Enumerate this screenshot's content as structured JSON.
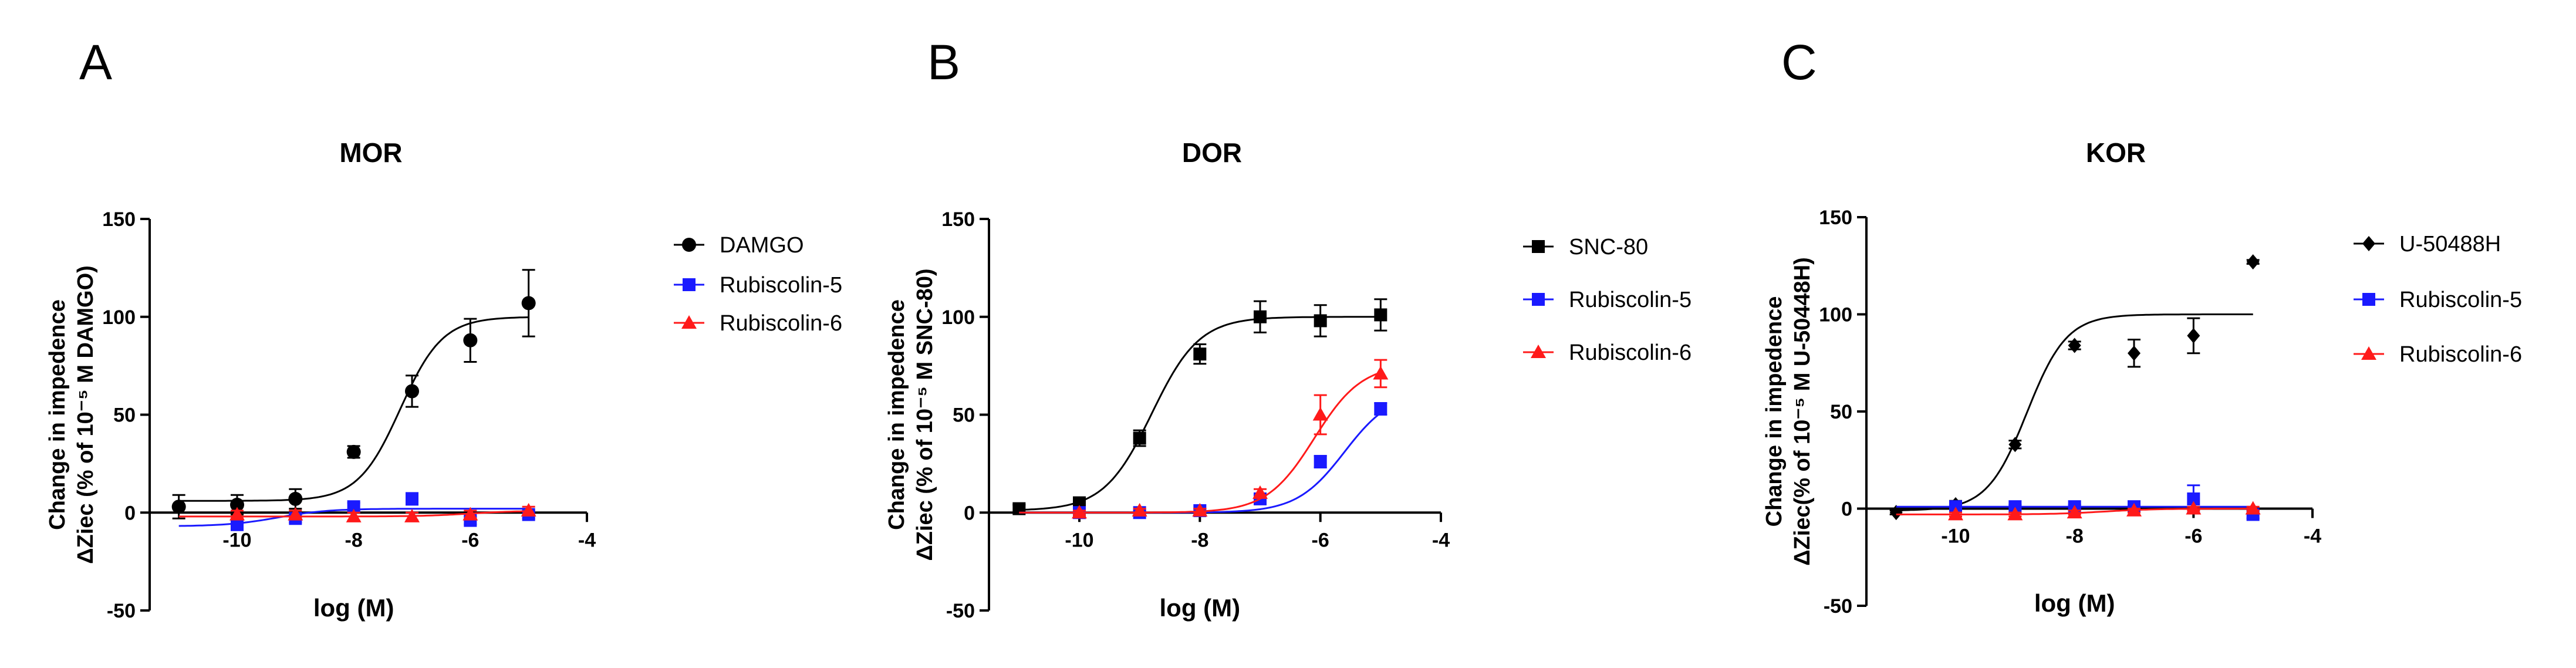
{
  "figure": {
    "panels": [
      {
        "letter": "A",
        "chart_data": {
          "type": "scatter",
          "title": "MOR",
          "xlabel": "log (M)",
          "ylabel_line1": "Change in impedence",
          "ylabel_line2": "ΔZiec (% of 10⁻⁵ M DAMGO)",
          "xlim": [
            -11.5,
            -4
          ],
          "ylim": [
            -50,
            150
          ],
          "xticks": [
            -10,
            -8,
            -6,
            -4
          ],
          "yticks": [
            -50,
            0,
            50,
            100,
            150
          ],
          "xtick_labels": [
            "-10",
            "-8",
            "-6",
            "-4"
          ],
          "ytick_labels": [
            "-50",
            "0",
            "50",
            "100",
            "150"
          ],
          "series": [
            {
              "name": "DAMGO",
              "marker": "circle",
              "color": "#000000",
              "x": [
                -11,
                -10,
                -9,
                -8,
                -7,
                -6,
                -5
              ],
              "y": [
                3,
                4,
                7,
                31,
                62,
                88,
                107
              ],
              "err": [
                6,
                5,
                5,
                3,
                8,
                11,
                17
              ],
              "fit": {
                "bottom": 6,
                "top": 100,
                "logEC50": -7.2,
                "hill": 1.2
              }
            },
            {
              "name": "Rubiscolin-5",
              "marker": "square",
              "color": "#1a1aff",
              "x": [
                -10,
                -9,
                -8,
                -7,
                -6,
                -5
              ],
              "y": [
                -6,
                -3,
                3,
                7,
                -4,
                -1
              ],
              "err": [
                3,
                2,
                2,
                3,
                2,
                2
              ],
              "fit": {
                "bottom": -7,
                "top": 2,
                "logEC50": -9.3,
                "hill": 1
              }
            },
            {
              "name": "Rubiscolin-6",
              "marker": "triangle",
              "color": "#ff1a1a",
              "x": [
                -10,
                -9,
                -8,
                -7,
                -6,
                -5
              ],
              "y": [
                -1,
                -1,
                -2,
                -2,
                -1,
                1
              ],
              "err": [
                2,
                2,
                2,
                2,
                2,
                2
              ],
              "fit": {
                "bottom": -2,
                "top": 1,
                "logEC50": -6,
                "hill": 1
              }
            }
          ]
        }
      },
      {
        "letter": "B",
        "chart_data": {
          "type": "scatter",
          "title": "DOR",
          "xlabel": "log (M)",
          "ylabel_line1": "Change in impedence",
          "ylabel_line2": "ΔZiec (% of 10⁻⁵ M SNC-80)",
          "xlim": [
            -11.5,
            -4
          ],
          "ylim": [
            -50,
            150
          ],
          "xticks": [
            -10,
            -8,
            -6,
            -4
          ],
          "yticks": [
            -50,
            0,
            50,
            100,
            150
          ],
          "xtick_labels": [
            "-10",
            "-8",
            "-6",
            "-4"
          ],
          "ytick_labels": [
            "-50",
            "0",
            "50",
            "100",
            "150"
          ],
          "series": [
            {
              "name": "SNC-80",
              "marker": "square",
              "color": "#000000",
              "x": [
                -11,
                -10,
                -9,
                -8,
                -7,
                -6,
                -5
              ],
              "y": [
                2,
                5,
                38,
                81,
                100,
                98,
                101
              ],
              "err": [
                2,
                2,
                4,
                5,
                8,
                8,
                8
              ],
              "fit": {
                "bottom": 1,
                "top": 100,
                "logEC50": -8.8,
                "hill": 1.1
              }
            },
            {
              "name": "Rubiscolin-5",
              "marker": "square",
              "color": "#1a1aff",
              "x": [
                -10,
                -9,
                -8,
                -7,
                -6,
                -5
              ],
              "y": [
                0,
                0,
                1,
                7,
                26,
                53
              ],
              "err": [
                1,
                1,
                1,
                2,
                3,
                3
              ],
              "fit": {
                "bottom": 0,
                "top": 62,
                "logEC50": -5.6,
                "hill": 1.1
              }
            },
            {
              "name": "Rubiscolin-6",
              "marker": "triangle",
              "color": "#ff1a1a",
              "x": [
                -10,
                -9,
                -8,
                -7,
                -6,
                -5
              ],
              "y": [
                0,
                1,
                1,
                10,
                50,
                71
              ],
              "err": [
                1,
                1,
                1,
                2,
                10,
                7
              ],
              "fit": {
                "bottom": 0,
                "top": 76,
                "logEC50": -6.1,
                "hill": 1.1
              }
            }
          ]
        }
      },
      {
        "letter": "C",
        "chart_data": {
          "type": "scatter",
          "title": "KOR",
          "xlabel": "log (M)",
          "ylabel_line1": "Change in impedence",
          "ylabel_line2": "ΔZiec(% of 10⁻⁵ M U-50448H)",
          "xlim": [
            -11.5,
            -4
          ],
          "ylim": [
            -50,
            150
          ],
          "xticks": [
            -10,
            -8,
            -6,
            -4
          ],
          "yticks": [
            -50,
            0,
            50,
            100,
            150
          ],
          "xtick_labels": [
            "-10",
            "-8",
            "-6",
            "-4"
          ],
          "ytick_labels": [
            "-50",
            "0",
            "50",
            "100",
            "150"
          ],
          "series": [
            {
              "name": "U-50488H",
              "marker": "diamond",
              "color": "#000000",
              "x": [
                -11,
                -10,
                -9,
                -8,
                -7,
                -6,
                -5
              ],
              "y": [
                -2,
                2,
                33,
                84,
                80,
                89,
                127
              ],
              "err": [
                1,
                2,
                2,
                2,
                7,
                9,
                1
              ],
              "fit": {
                "bottom": -1,
                "top": 100,
                "logEC50": -8.8,
                "hill": 1.3
              }
            },
            {
              "name": "Rubiscolin-5",
              "marker": "square",
              "color": "#1a1aff",
              "x": [
                -10,
                -9,
                -8,
                -7,
                -6,
                -5
              ],
              "y": [
                1,
                1,
                1,
                1,
                5,
                -3
              ],
              "err": [
                1,
                1,
                1,
                1,
                7,
                2
              ],
              "fit": {
                "bottom": 1,
                "top": 1,
                "logEC50": -8,
                "hill": 1
              }
            },
            {
              "name": "Rubiscolin-6",
              "marker": "triangle",
              "color": "#ff1a1a",
              "x": [
                -10,
                -9,
                -8,
                -7,
                -6,
                -5
              ],
              "y": [
                -3,
                -3,
                -2,
                -1,
                0,
                0
              ],
              "err": [
                1,
                1,
                1,
                1,
                1,
                1
              ],
              "fit": {
                "bottom": -3,
                "top": 0,
                "logEC50": -7.5,
                "hill": 1
              }
            }
          ]
        }
      }
    ]
  }
}
